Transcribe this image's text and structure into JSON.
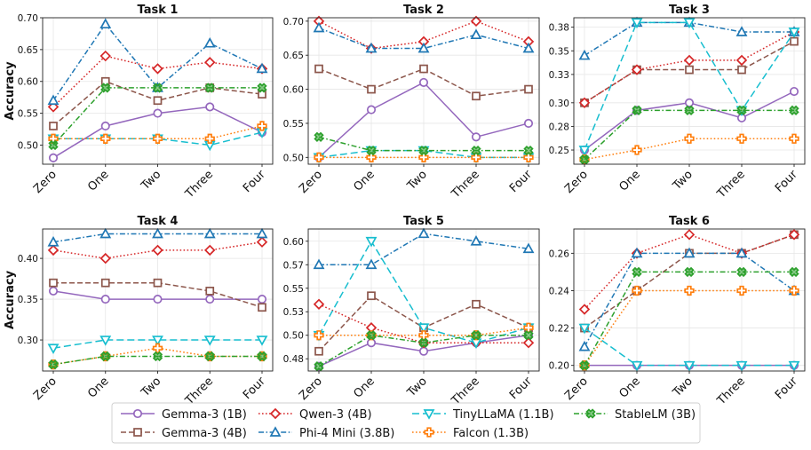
{
  "chart_data": {
    "type": "line",
    "ylabel": "Accuracy",
    "categories": [
      "Zero",
      "One",
      "Two",
      "Three",
      "Four"
    ],
    "legend": {
      "placement": "bottom-center",
      "columns": 4,
      "entries": [
        {
          "name": "Gemma-3 (1B)",
          "color": "#9467bd",
          "dash": "solid",
          "marker": "circle"
        },
        {
          "name": "Gemma-3 (4B)",
          "color": "#8c564b",
          "dash": "dashed",
          "marker": "square"
        },
        {
          "name": "Qwen-3 (4B)",
          "color": "#d62728",
          "dash": "dotted",
          "marker": "diamond"
        },
        {
          "name": "Phi-4 Mini (3.8B)",
          "color": "#1f77b4",
          "dash": "dashdot",
          "marker": "triangle-up"
        },
        {
          "name": "TinyLLaMA (1.1B)",
          "color": "#17becf",
          "dash": "longdash",
          "marker": "triangle-down"
        },
        {
          "name": "Falcon (1.3B)",
          "color": "#ff7f0e",
          "dash": "dotted",
          "marker": "plus"
        },
        {
          "name": "StableLM (3B)",
          "color": "#2ca02c",
          "dash": "dashdot",
          "marker": "x"
        }
      ]
    },
    "panels": [
      {
        "title": "Task 1",
        "ylim": [
          0.47,
          0.7
        ],
        "yticks": [
          0.5,
          0.55,
          0.6,
          0.65,
          0.7
        ],
        "ytick_labels": [
          "0.50",
          "0.55",
          "0.60",
          "0.65",
          "0.70"
        ],
        "series": [
          {
            "name": "Gemma-3 (1B)",
            "values": [
              0.48,
              0.53,
              0.55,
              0.56,
              0.52
            ]
          },
          {
            "name": "Gemma-3 (4B)",
            "values": [
              0.53,
              0.6,
              0.57,
              0.59,
              0.58
            ]
          },
          {
            "name": "Qwen-3 (4B)",
            "values": [
              0.56,
              0.64,
              0.62,
              0.63,
              0.62
            ]
          },
          {
            "name": "Phi-4 Mini (3.8B)",
            "values": [
              0.57,
              0.69,
              0.59,
              0.66,
              0.62
            ]
          },
          {
            "name": "TinyLLaMA (1.1B)",
            "values": [
              0.51,
              0.51,
              0.51,
              0.5,
              0.52
            ]
          },
          {
            "name": "Falcon (1.3B)",
            "values": [
              0.51,
              0.51,
              0.51,
              0.51,
              0.53
            ]
          },
          {
            "name": "StableLM (3B)",
            "values": [
              0.5,
              0.59,
              0.59,
              0.59,
              0.59
            ]
          }
        ]
      },
      {
        "title": "Task 2",
        "ylim": [
          0.49,
          0.705
        ],
        "yticks": [
          0.5,
          0.55,
          0.6,
          0.65,
          0.7
        ],
        "ytick_labels": [
          "0.50",
          "0.55",
          "0.60",
          "0.65",
          "0.70"
        ],
        "series": [
          {
            "name": "Gemma-3 (1B)",
            "values": [
              0.5,
              0.57,
              0.61,
              0.53,
              0.55
            ]
          },
          {
            "name": "Gemma-3 (4B)",
            "values": [
              0.63,
              0.6,
              0.63,
              0.59,
              0.6
            ]
          },
          {
            "name": "Qwen-3 (4B)",
            "values": [
              0.7,
              0.66,
              0.67,
              0.7,
              0.67
            ]
          },
          {
            "name": "Phi-4 Mini (3.8B)",
            "values": [
              0.69,
              0.66,
              0.66,
              0.68,
              0.66
            ]
          },
          {
            "name": "TinyLLaMA (1.1B)",
            "values": [
              0.5,
              0.51,
              0.51,
              0.5,
              0.5
            ]
          },
          {
            "name": "Falcon (1.3B)",
            "values": [
              0.5,
              0.5,
              0.5,
              0.5,
              0.5
            ]
          },
          {
            "name": "StableLM (3B)",
            "values": [
              0.53,
              0.51,
              0.51,
              0.51,
              0.51
            ]
          }
        ]
      },
      {
        "title": "Task 3",
        "ylim": [
          0.235,
          0.39
        ],
        "yticks": [
          0.25,
          0.275,
          0.3,
          0.33,
          0.355,
          0.38
        ],
        "ytick_labels": [
          "0.25",
          "0.28",
          "0.30",
          "0.33",
          "0.35",
          "0.38"
        ],
        "series": [
          {
            "name": "Gemma-3 (1B)",
            "values": [
              0.25,
              0.292,
              0.3,
              0.284,
              0.312
            ]
          },
          {
            "name": "Gemma-3 (4B)",
            "values": [
              0.3,
              0.335,
              0.335,
              0.335,
              0.365
            ]
          },
          {
            "name": "Qwen-3 (4B)",
            "values": [
              0.3,
              0.335,
              0.345,
              0.345,
              0.375
            ]
          },
          {
            "name": "Phi-4 Mini (3.8B)",
            "values": [
              0.35,
              0.385,
              0.385,
              0.375,
              0.375
            ]
          },
          {
            "name": "TinyLLaMA (1.1B)",
            "values": [
              0.25,
              0.385,
              0.385,
              0.292,
              0.375
            ]
          },
          {
            "name": "Falcon (1.3B)",
            "values": [
              0.24,
              0.25,
              0.262,
              0.262,
              0.262
            ]
          },
          {
            "name": "StableLM (3B)",
            "values": [
              0.24,
              0.292,
              0.292,
              0.292,
              0.292
            ]
          }
        ]
      },
      {
        "title": "Task 4",
        "ylim": [
          0.262,
          0.436
        ],
        "yticks": [
          0.3,
          0.35,
          0.4
        ],
        "ytick_labels": [
          "0.30",
          "0.35",
          "0.40"
        ],
        "series": [
          {
            "name": "Gemma-3 (1B)",
            "values": [
              0.36,
              0.35,
              0.35,
              0.35,
              0.35
            ]
          },
          {
            "name": "Gemma-3 (4B)",
            "values": [
              0.37,
              0.37,
              0.37,
              0.36,
              0.34
            ]
          },
          {
            "name": "Qwen-3 (4B)",
            "values": [
              0.41,
              0.4,
              0.41,
              0.41,
              0.42
            ]
          },
          {
            "name": "Phi-4 Mini (3.8B)",
            "values": [
              0.42,
              0.43,
              0.43,
              0.43,
              0.43
            ]
          },
          {
            "name": "TinyLLaMA (1.1B)",
            "values": [
              0.29,
              0.3,
              0.3,
              0.3,
              0.3
            ]
          },
          {
            "name": "Falcon (1.3B)",
            "values": [
              0.27,
              0.28,
              0.29,
              0.28,
              0.28
            ]
          },
          {
            "name": "StableLM (3B)",
            "values": [
              0.27,
              0.28,
              0.28,
              0.28,
              0.28
            ]
          }
        ]
      },
      {
        "title": "Task 5",
        "ylim": [
          0.462,
          0.613
        ],
        "yticks": [
          0.475,
          0.5,
          0.525,
          0.55,
          0.575,
          0.6
        ],
        "ytick_labels": [
          "0.48",
          "0.50",
          "0.53",
          "0.55",
          "0.57",
          "0.60"
        ],
        "series": [
          {
            "name": "Gemma-3 (1B)",
            "values": [
              0.467,
              0.492,
              0.483,
              0.492,
              0.5
            ]
          },
          {
            "name": "Gemma-3 (4B)",
            "values": [
              0.483,
              0.542,
              0.508,
              0.533,
              0.508
            ]
          },
          {
            "name": "Qwen-3 (4B)",
            "values": [
              0.533,
              0.508,
              0.492,
              0.492,
              0.492
            ]
          },
          {
            "name": "Phi-4 Mini (3.8B)",
            "values": [
              0.575,
              0.575,
              0.608,
              0.6,
              0.592
            ]
          },
          {
            "name": "TinyLLaMA (1.1B)",
            "values": [
              0.5,
              0.6,
              0.508,
              0.492,
              0.508
            ]
          },
          {
            "name": "Falcon (1.3B)",
            "values": [
              0.5,
              0.5,
              0.5,
              0.5,
              0.508
            ]
          },
          {
            "name": "StableLM (3B)",
            "values": [
              0.467,
              0.5,
              0.492,
              0.5,
              0.5
            ]
          }
        ]
      },
      {
        "title": "Task 6",
        "ylim": [
          0.197,
          0.273
        ],
        "yticks": [
          0.2,
          0.22,
          0.24,
          0.26
        ],
        "ytick_labels": [
          "0.20",
          "0.22",
          "0.24",
          "0.26"
        ],
        "series": [
          {
            "name": "Gemma-3 (1B)",
            "values": [
              0.2,
              0.2,
              0.2,
              0.2,
              0.2
            ]
          },
          {
            "name": "Gemma-3 (4B)",
            "values": [
              0.22,
              0.24,
              0.26,
              0.26,
              0.27
            ]
          },
          {
            "name": "Qwen-3 (4B)",
            "values": [
              0.23,
              0.26,
              0.27,
              0.26,
              0.27
            ]
          },
          {
            "name": "Phi-4 Mini (3.8B)",
            "values": [
              0.21,
              0.26,
              0.26,
              0.26,
              0.24
            ]
          },
          {
            "name": "TinyLLaMA (1.1B)",
            "values": [
              0.22,
              0.2,
              0.2,
              0.2,
              0.2
            ]
          },
          {
            "name": "Falcon (1.3B)",
            "values": [
              0.2,
              0.24,
              0.24,
              0.24,
              0.24
            ]
          },
          {
            "name": "StableLM (3B)",
            "values": [
              0.2,
              0.25,
              0.25,
              0.25,
              0.25
            ]
          }
        ]
      }
    ]
  }
}
